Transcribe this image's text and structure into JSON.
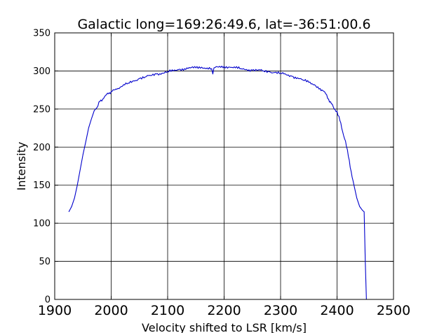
{
  "chart_data": {
    "type": "line",
    "title": "Galactic long=169:26:49.6, lat=-36:51:00.6",
    "xlabel": "Velocity shifted to LSR [km/s]",
    "ylabel": "Intensity",
    "xlim": [
      1900,
      2500
    ],
    "ylim": [
      0,
      350
    ],
    "xticks": [
      "1900",
      "2000",
      "2100",
      "2200",
      "2300",
      "2400",
      "2500"
    ],
    "yticks": [
      "0",
      "50",
      "100",
      "150",
      "200",
      "250",
      "300",
      "350"
    ],
    "grid": true,
    "line_color": "#0000cc",
    "series": [
      {
        "x": [
          1925,
          1930,
          1935,
          1940,
          1945,
          1950,
          1955,
          1960,
          1965,
          1970,
          1975,
          1980,
          1985,
          1990,
          1995,
          2000,
          2005,
          2010,
          2020,
          2030,
          2040,
          2050,
          2060,
          2070,
          2080,
          2090,
          2100,
          2110,
          2120,
          2130,
          2140,
          2150,
          2160,
          2170,
          2178,
          2180,
          2182,
          2190,
          2200,
          2210,
          2220,
          2230,
          2240,
          2250,
          2260,
          2270,
          2280,
          2290,
          2300,
          2310,
          2320,
          2330,
          2340,
          2350,
          2360,
          2370,
          2375,
          2380,
          2385,
          2390,
          2395,
          2400,
          2405,
          2410,
          2415,
          2420,
          2425,
          2430,
          2435,
          2440,
          2445,
          2448,
          2450,
          2452
        ],
        "y": [
          115,
          122,
          133,
          150,
          170,
          190,
          207,
          225,
          237,
          248,
          252,
          260,
          263,
          268,
          270,
          273,
          275,
          276,
          280,
          284,
          287,
          290,
          292,
          294,
          296,
          297,
          299,
          300,
          302,
          303,
          304,
          304,
          305,
          304,
          303,
          296,
          304,
          305,
          306,
          305,
          304,
          303,
          302,
          301,
          301,
          300,
          299,
          298,
          297,
          295,
          293,
          291,
          288,
          285,
          282,
          277,
          274,
          270,
          263,
          257,
          250,
          247,
          235,
          220,
          208,
          188,
          168,
          150,
          133,
          122,
          117,
          115,
          50,
          0
        ]
      }
    ]
  }
}
